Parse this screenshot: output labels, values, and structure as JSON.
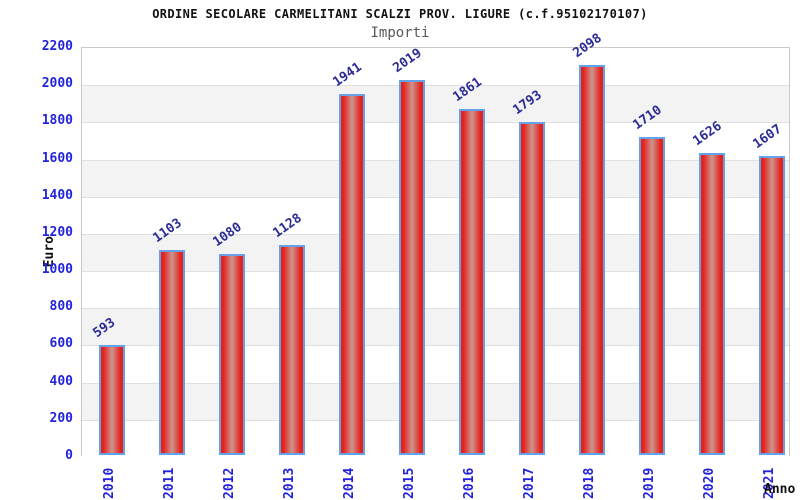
{
  "chart_data": {
    "type": "bar",
    "title": "ORDINE SECOLARE CARMELITANI SCALZI PROV. LIGURE (c.f.95102170107)",
    "subtitle": "Importi",
    "xlabel": "Anno",
    "ylabel": "Euro",
    "categories": [
      "2010",
      "2011",
      "2012",
      "2013",
      "2014",
      "2015",
      "2016",
      "2017",
      "2018",
      "2019",
      "2020",
      "2021"
    ],
    "values": [
      593,
      1103,
      1080,
      1128,
      1941,
      2019,
      1861,
      1793,
      2098,
      1710,
      1626,
      1607
    ],
    "ylim": [
      0,
      2200
    ],
    "ytick_step": 200,
    "yticks": [
      "0",
      "200",
      "400",
      "600",
      "800",
      "1000",
      "1200",
      "1400",
      "1600",
      "1800",
      "2000",
      "2200"
    ],
    "grid": "horizontal-with-alternating-bands",
    "legend": "none",
    "colors": {
      "title": "#111111",
      "subtitle": "#595959",
      "tick_label": "#2323dd",
      "value_label": "#2b2b96",
      "bar_edge": "#66a0e8",
      "bar_fill_edge": "#e62119",
      "bar_fill_center": "#cc958f",
      "band": "#f3f3f3",
      "gridline": "#e0e0e0",
      "plot_border": "#c9c9c9"
    }
  }
}
